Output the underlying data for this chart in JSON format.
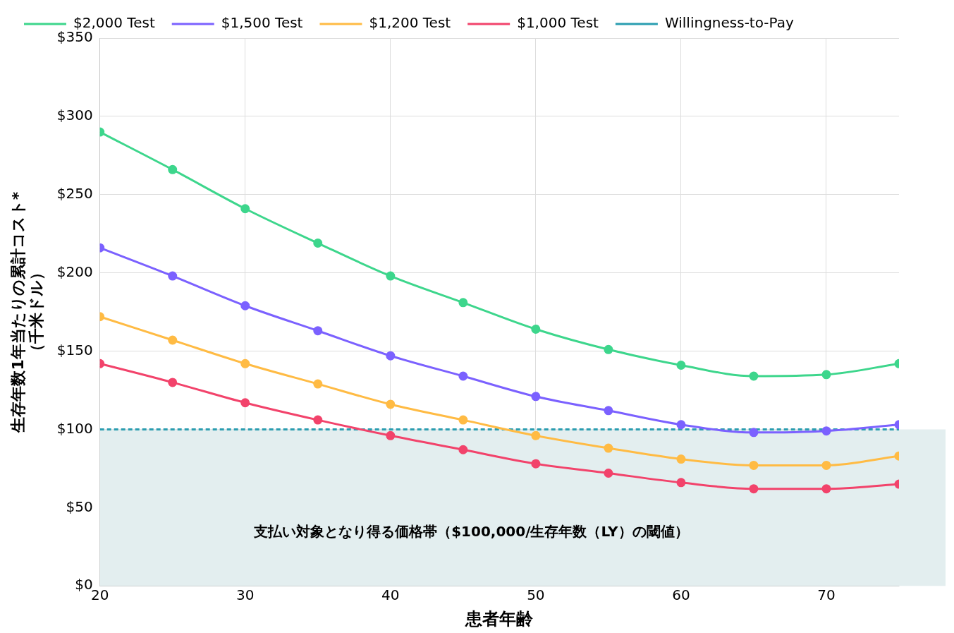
{
  "chart_data": {
    "type": "line",
    "xlabel": "患者年齢",
    "ylabel": "生存年数1年当たりの累計コスト*\n（千米ドル）",
    "x": [
      20,
      25,
      30,
      35,
      40,
      45,
      50,
      55,
      60,
      65,
      70,
      75
    ],
    "series": [
      {
        "name": "$2,000 Test",
        "color": "#3dd68c",
        "values": [
          290,
          266,
          241,
          219,
          198,
          181,
          164,
          151,
          141,
          134,
          135,
          142
        ]
      },
      {
        "name": "$1,500 Test",
        "color": "#7b61ff",
        "values": [
          216,
          198,
          179,
          163,
          147,
          134,
          121,
          112,
          103,
          98,
          99,
          103
        ]
      },
      {
        "name": "$1,200 Test",
        "color": "#ffbb44",
        "values": [
          172,
          157,
          142,
          129,
          116,
          106,
          96,
          88,
          81,
          77,
          77,
          83
        ]
      },
      {
        "name": "$1,000 Test",
        "color": "#f2436b",
        "values": [
          142,
          130,
          117,
          106,
          96,
          87,
          78,
          72,
          66,
          62,
          62,
          65
        ]
      },
      {
        "name": "Willingness-to-Pay",
        "color": "#2a9db0",
        "line_style": "dashed",
        "marker": "none",
        "values": [
          100,
          100,
          100,
          100,
          100,
          100,
          100,
          100,
          100,
          100,
          100,
          100
        ]
      }
    ],
    "bands": [
      {
        "axis": "y",
        "from": 0,
        "to": 100,
        "label": "支払い対象となり得る価格帯（$100,000/生存年数（LY）の閾値）",
        "color": "#e3eeef"
      }
    ],
    "xlim": [
      20,
      75
    ],
    "xticks": [
      20,
      30,
      40,
      50,
      60,
      70
    ],
    "ylim": [
      0,
      350
    ],
    "yticks": [
      {
        "value": 0,
        "label": "$0"
      },
      {
        "value": 50,
        "label": "$50"
      },
      {
        "value": 100,
        "label": "$100"
      },
      {
        "value": 150,
        "label": "$150"
      },
      {
        "value": 200,
        "label": "$200"
      },
      {
        "value": 250,
        "label": "$250"
      },
      {
        "value": 300,
        "label": "$300"
      },
      {
        "value": 350,
        "label": "$350"
      }
    ],
    "grid": true,
    "legend": "top",
    "marker": "circle",
    "line_style": "solid"
  }
}
